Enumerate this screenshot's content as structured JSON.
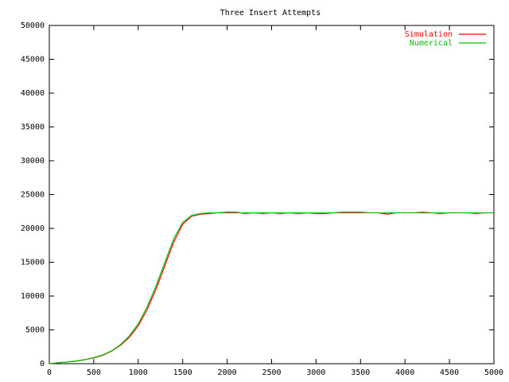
{
  "chart_data": {
    "type": "line",
    "title": "Three Insert Attempts",
    "x": [
      0,
      100,
      200,
      300,
      400,
      500,
      600,
      700,
      800,
      900,
      1000,
      1100,
      1200,
      1300,
      1400,
      1500,
      1600,
      1700,
      1800,
      1900,
      2000,
      2100,
      2200,
      2300,
      2400,
      2500,
      2600,
      2700,
      2800,
      2900,
      3000,
      3100,
      3200,
      3300,
      3400,
      3500,
      3600,
      3700,
      3800,
      3900,
      4000,
      4100,
      4200,
      4300,
      4400,
      4500,
      4600,
      4700,
      4800,
      4900,
      5000
    ],
    "series": [
      {
        "name": "Simulation",
        "color": "#ff0000",
        "values": [
          0,
          140,
          240,
          380,
          580,
          870,
          1250,
          1850,
          2700,
          3900,
          5600,
          8000,
          11000,
          14500,
          18000,
          20600,
          21800,
          22100,
          22200,
          22300,
          22400,
          22400,
          22200,
          22300,
          22200,
          22300,
          22200,
          22300,
          22200,
          22300,
          22200,
          22200,
          22300,
          22400,
          22400,
          22400,
          22300,
          22300,
          22100,
          22300,
          22300,
          22300,
          22400,
          22300,
          22200,
          22300,
          22300,
          22300,
          22200,
          22300,
          22300
        ]
      },
      {
        "name": "Numerical",
        "color": "#00c000",
        "values": [
          0,
          150,
          250,
          400,
          600,
          900,
          1300,
          1900,
          2800,
          4100,
          5900,
          8400,
          11500,
          15000,
          18500,
          20900,
          21900,
          22200,
          22300,
          22300,
          22300,
          22300,
          22300,
          22300,
          22300,
          22300,
          22300,
          22300,
          22300,
          22300,
          22300,
          22300,
          22300,
          22300,
          22300,
          22300,
          22300,
          22300,
          22300,
          22300,
          22300,
          22300,
          22300,
          22300,
          22300,
          22300,
          22300,
          22300,
          22300,
          22300,
          22300
        ]
      }
    ],
    "xlim": [
      0,
      5000
    ],
    "xticks": [
      0,
      500,
      1000,
      1500,
      2000,
      2500,
      3000,
      3500,
      4000,
      4500,
      5000
    ],
    "ylim": [
      0,
      50000
    ],
    "yticks": [
      0,
      5000,
      10000,
      15000,
      20000,
      25000,
      30000,
      35000,
      40000,
      45000,
      50000
    ],
    "legend": "top-right"
  }
}
